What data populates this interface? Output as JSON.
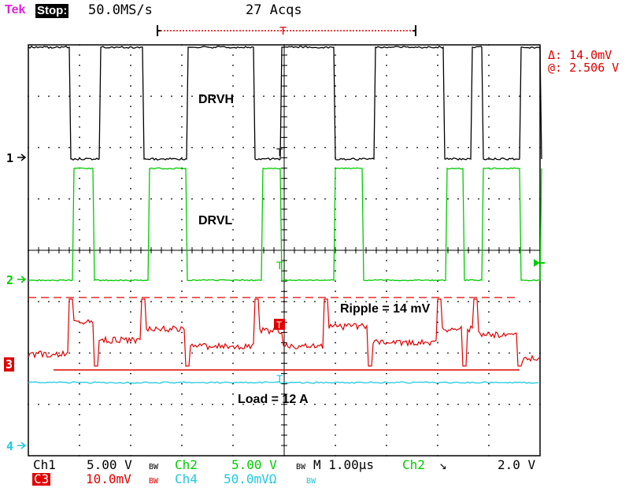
{
  "header": {
    "brand": "Tek",
    "run_state": "Stop:",
    "sample_rate": "50.0MS/s",
    "acquisitions": "27 Acqs"
  },
  "cursor": {
    "delta": "Δ: 14.0mV",
    "at": "@: 2.506 V"
  },
  "annotations": {
    "drvh": "DRVH",
    "drvl": "DRVL",
    "ripple": "Ripple = 14 mV",
    "load": "Load = 12 A"
  },
  "channel_markers": {
    "ch1": "1",
    "ch2": "2",
    "ch3": "3",
    "ch4": "4"
  },
  "status_bar": {
    "ch1_name": "Ch1",
    "ch1_scale": "5.00 V",
    "ch2_name": "Ch2",
    "ch2_scale": "5.00 V",
    "timebase": "M 1.00µs",
    "trigger_source": "Ch2",
    "trigger_level": "2.0 V",
    "ch3_name": "C3",
    "ch3_scale": "10.0mV",
    "ch4_name": "Ch4",
    "ch4_scale": "50.0mVΩ"
  },
  "colors": {
    "ch1": "#000000",
    "ch2": "#00cc00",
    "ch3": "#e00000",
    "ch4": "#20c8e0",
    "grid": "#000000",
    "brand": "#e020e0"
  }
}
